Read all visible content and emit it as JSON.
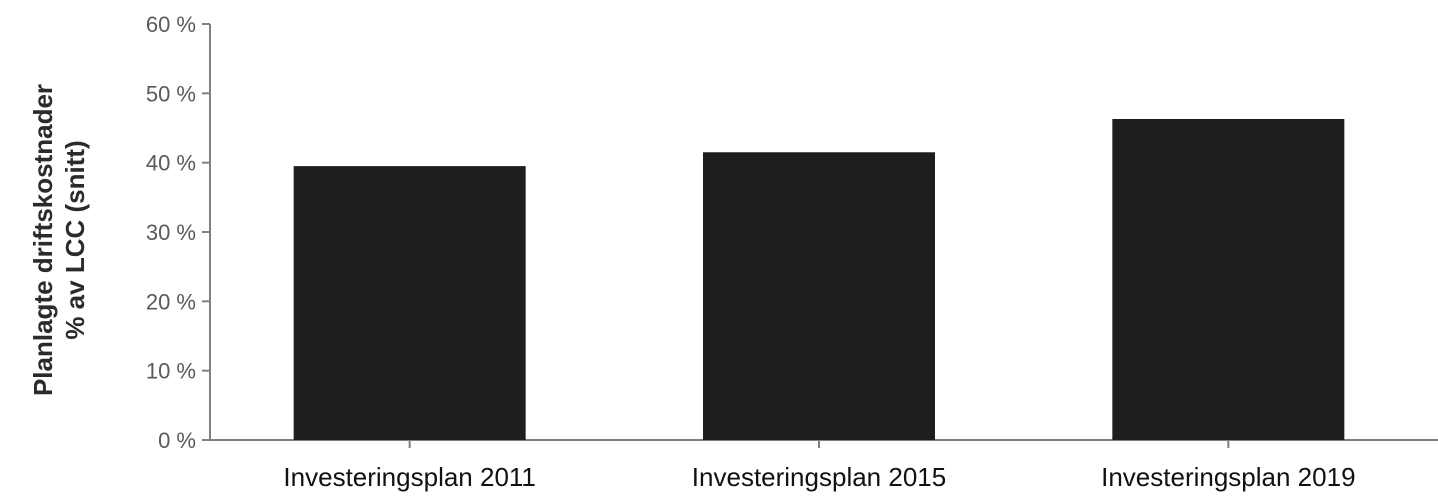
{
  "chart_data": {
    "type": "bar",
    "categories": [
      "Investeringsplan 2011",
      "Investeringsplan 2015",
      "Investeringsplan 2019"
    ],
    "values": [
      39.5,
      41.5,
      46.3
    ],
    "title": "",
    "xlabel": "",
    "ylabel": [
      "Planlagte driftskostnader",
      "% av LCC (snitt)"
    ],
    "ylim": [
      0,
      60
    ],
    "yticks": [
      0,
      10,
      20,
      30,
      40,
      50,
      60
    ],
    "ytick_labels": [
      "0 %",
      "10 %",
      "20 %",
      "30 %",
      "40 %",
      "50 %",
      "60 %"
    ],
    "grid": false,
    "legend": "none",
    "bar_color": "#1e1e1e",
    "axis_color": "#808080"
  }
}
